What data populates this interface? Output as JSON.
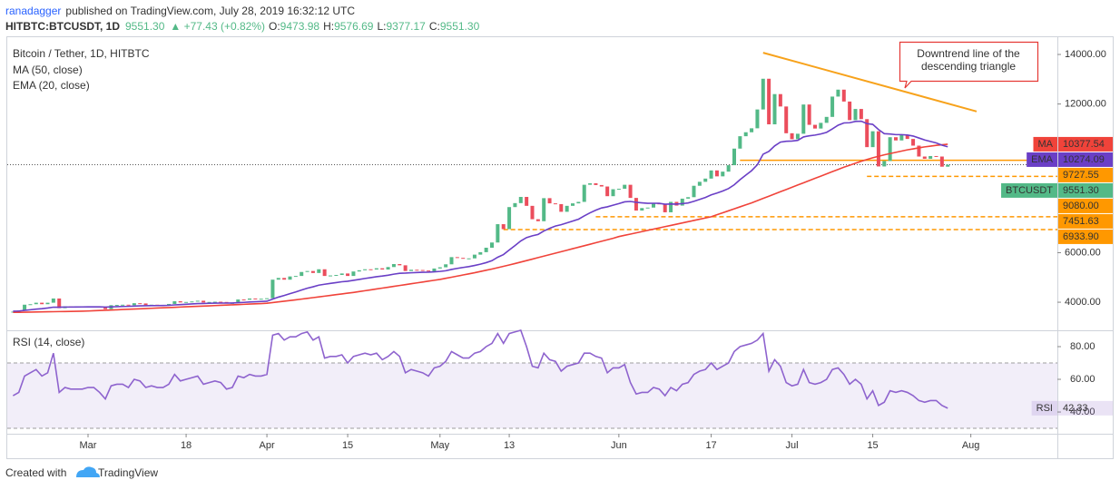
{
  "header": {
    "author": "ranadagger",
    "published": "published on TradingView.com, July 28, 2019 16:32:12 UTC",
    "symbol": "HITBTC:BTCUSDT, 1D",
    "last": "9551.30",
    "change": "▲ +77.43 (+0.82%)",
    "ohlc": [
      {
        "key": "O:",
        "value": "9473.98"
      },
      {
        "key": "H:",
        "value": "9576.69"
      },
      {
        "key": "L:",
        "value": "9377.17"
      },
      {
        "key": "C:",
        "value": "9551.30"
      }
    ]
  },
  "footer": {
    "prefix": "Created with",
    "brand": "TradingView"
  },
  "chart_data": {
    "type": "candlestick",
    "x": [
      "02-16",
      "02-17",
      "02-18",
      "02-19",
      "02-20",
      "02-21",
      "02-22",
      "02-23",
      "02-24",
      "02-25",
      "02-26",
      "02-27",
      "02-28",
      "03-01",
      "03-02",
      "03-03",
      "03-04",
      "03-05",
      "03-06",
      "03-07",
      "03-08",
      "03-09",
      "03-10",
      "03-11",
      "03-12",
      "03-13",
      "03-14",
      "03-15",
      "03-16",
      "03-17",
      "03-18",
      "03-19",
      "03-20",
      "03-21",
      "03-22",
      "03-23",
      "03-24",
      "03-25",
      "03-26",
      "03-27",
      "03-28",
      "03-29",
      "03-30",
      "03-31",
      "04-01",
      "04-02",
      "04-03",
      "04-04",
      "04-05",
      "04-06",
      "04-07",
      "04-08",
      "04-09",
      "04-10",
      "04-11",
      "04-12",
      "04-13",
      "04-14",
      "04-15",
      "04-16",
      "04-17",
      "04-18",
      "04-19",
      "04-20",
      "04-21",
      "04-22",
      "04-23",
      "04-24",
      "04-25",
      "04-26",
      "04-27",
      "04-28",
      "04-29",
      "04-30",
      "05-01",
      "05-02",
      "05-03",
      "05-04",
      "05-05",
      "05-06",
      "05-07",
      "05-08",
      "05-09",
      "05-10",
      "05-11",
      "05-12",
      "05-13",
      "05-14",
      "05-15",
      "05-16",
      "05-17",
      "05-18",
      "05-19",
      "05-20",
      "05-21",
      "05-22",
      "05-23",
      "05-24",
      "05-25",
      "05-26",
      "05-27",
      "05-28",
      "05-29",
      "05-30",
      "05-31",
      "06-01",
      "06-02",
      "06-03",
      "06-04",
      "06-05",
      "06-06",
      "06-07",
      "06-08",
      "06-09",
      "06-10",
      "06-11",
      "06-12",
      "06-13",
      "06-14",
      "06-15",
      "06-16",
      "06-17",
      "06-18",
      "06-19",
      "06-20",
      "06-21",
      "06-22",
      "06-23",
      "06-24",
      "06-25",
      "06-26",
      "06-27",
      "06-28",
      "06-29",
      "06-30",
      "07-01",
      "07-02",
      "07-03",
      "07-04",
      "07-05",
      "07-06",
      "07-07",
      "07-08",
      "07-09",
      "07-10",
      "07-11",
      "07-12",
      "07-13",
      "07-14",
      "07-15",
      "07-16",
      "07-17",
      "07-18",
      "07-19",
      "07-20",
      "07-21",
      "07-22",
      "07-23",
      "07-24",
      "07-25",
      "07-26",
      "07-27",
      "07-28"
    ],
    "xlim": [
      "02-15",
      "08-16"
    ],
    "xticks": [
      {
        "value": "03-01",
        "label": "Mar"
      },
      {
        "value": "03-18",
        "label": "18"
      },
      {
        "value": "04-01",
        "label": "Apr"
      },
      {
        "value": "04-15",
        "label": "15"
      },
      {
        "value": "05-01",
        "label": "May"
      },
      {
        "value": "05-13",
        "label": "13"
      },
      {
        "value": "06-01",
        "label": "Jun"
      },
      {
        "value": "06-17",
        "label": "17"
      },
      {
        "value": "07-01",
        "label": "Jul"
      },
      {
        "value": "07-15",
        "label": "15"
      },
      {
        "value": "08-01",
        "label": "Aug"
      }
    ],
    "ylim": [
      2940,
      14550
    ],
    "yticks": [
      {
        "value": 4000,
        "label": "4000.00"
      },
      {
        "value": 6000,
        "label": "6000.00"
      },
      {
        "value": 12000,
        "label": "12000.00"
      },
      {
        "value": 14000,
        "label": "14000.00"
      }
    ],
    "grid": false,
    "series": [
      {
        "name": "Bitcoin / Tether, 1D, HITBTC",
        "kind": "candle",
        "badge_name": "BTCUSDT",
        "badge_label": "9551.30",
        "up_color": "#53b987",
        "down_color": "#eb4d5c",
        "color": "#53b987",
        "values": [
          3620,
          3670,
          3900,
          3920,
          3980,
          3920,
          3980,
          4150,
          3760,
          3830,
          3810,
          3820,
          3820,
          3830,
          3830,
          3790,
          3720,
          3880,
          3890,
          3900,
          3880,
          3960,
          3950,
          3880,
          3900,
          3890,
          3890,
          3930,
          4040,
          3990,
          4010,
          4030,
          4060,
          3990,
          4010,
          4020,
          4010,
          3950,
          3970,
          4110,
          4100,
          4150,
          4130,
          4140,
          4160,
          4910,
          4980,
          4910,
          5040,
          5060,
          5220,
          5260,
          5180,
          5330,
          5060,
          5080,
          5100,
          5160,
          5060,
          5240,
          5290,
          5330,
          5320,
          5370,
          5320,
          5420,
          5540,
          5490,
          5260,
          5310,
          5300,
          5280,
          5240,
          5360,
          5410,
          5530,
          5820,
          5790,
          5760,
          5770,
          5920,
          6020,
          6200,
          6410,
          7150,
          6950,
          7840,
          8000,
          8250,
          7890,
          7350,
          7270,
          8200,
          7990,
          7960,
          7650,
          7890,
          7990,
          8050,
          8740,
          8800,
          8730,
          8670,
          8280,
          8560,
          8580,
          8740,
          8210,
          7700,
          7800,
          7820,
          8000,
          7950,
          7630,
          8050,
          7900,
          8180,
          8240,
          8700,
          8860,
          8990,
          9320,
          9080,
          9270,
          9530,
          10200,
          10700,
          10860,
          11020,
          11780,
          13020,
          11180,
          12400,
          11900,
          10820,
          10580,
          10800,
          11980,
          11160,
          11010,
          11240,
          11480,
          12300,
          12580,
          12100,
          11350,
          11800,
          11390,
          10260,
          10900,
          9480,
          9700,
          10660,
          10530,
          10760,
          10590,
          10320,
          9880,
          9790,
          9900,
          9880,
          9470,
          9551.3
        ]
      },
      {
        "name": "MA (50, close)",
        "kind": "line",
        "badge_name": "MA",
        "color": "#f0433a",
        "values": [
          3590,
          3594,
          3598,
          3602,
          3606,
          3610,
          3614,
          3618,
          3622,
          3626,
          3630,
          3634,
          3638,
          3645,
          3655,
          3665,
          3675,
          3685,
          3695,
          3705,
          3715,
          3725,
          3735,
          3745,
          3755,
          3765,
          3775,
          3785,
          3795,
          3805,
          3815,
          3825,
          3835,
          3845,
          3855,
          3865,
          3875,
          3885,
          3895,
          3905,
          3915,
          3925,
          3935,
          3945,
          3960,
          3985,
          4012,
          4040,
          4068,
          4096,
          4125,
          4155,
          4185,
          4215,
          4245,
          4275,
          4305,
          4335,
          4365,
          4395,
          4430,
          4465,
          4500,
          4535,
          4570,
          4605,
          4640,
          4675,
          4710,
          4745,
          4780,
          4815,
          4850,
          4885,
          4920,
          4965,
          5010,
          5055,
          5100,
          5145,
          5190,
          5240,
          5290,
          5340,
          5395,
          5450,
          5505,
          5560,
          5620,
          5680,
          5740,
          5800,
          5860,
          5920,
          5980,
          6040,
          6100,
          6160,
          6220,
          6280,
          6340,
          6400,
          6460,
          6520,
          6580,
          6650,
          6700,
          6750,
          6800,
          6850,
          6900,
          6950,
          7000,
          7050,
          7100,
          7150,
          7200,
          7250,
          7300,
          7350,
          7400,
          7450,
          7530,
          7610,
          7690,
          7770,
          7850,
          7930,
          8010,
          8100,
          8190,
          8280,
          8370,
          8460,
          8550,
          8640,
          8730,
          8820,
          8910,
          9000,
          9090,
          9180,
          9270,
          9360,
          9450,
          9530,
          9610,
          9690,
          9760,
          9830,
          9890,
          9950,
          10000,
          10050,
          10100,
          10150,
          10190,
          10230,
          10270,
          10300,
          10330,
          10355,
          10377.54
        ]
      },
      {
        "name": "EMA (20, close)",
        "kind": "line",
        "badge_name": "EMA",
        "color": "#6a3fc6",
        "values": [
          3640,
          3645,
          3670,
          3695,
          3720,
          3740,
          3765,
          3800,
          3800,
          3805,
          3805,
          3808,
          3810,
          3812,
          3814,
          3812,
          3805,
          3812,
          3820,
          3828,
          3833,
          3845,
          3855,
          3857,
          3862,
          3865,
          3868,
          3874,
          3892,
          3904,
          3916,
          3930,
          3945,
          3950,
          3956,
          3962,
          3966,
          3966,
          3968,
          3982,
          3993,
          4008,
          4019,
          4030,
          4041,
          4125,
          4206,
          4273,
          4346,
          4414,
          4491,
          4565,
          4623,
          4689,
          4725,
          4759,
          4792,
          4826,
          4846,
          4883,
          4921,
          4959,
          4993,
          5029,
          5056,
          5090,
          5133,
          5167,
          5175,
          5188,
          5199,
          5208,
          5212,
          5226,
          5243,
          5270,
          5322,
          5366,
          5403,
          5438,
          5484,
          5535,
          5598,
          5675,
          5816,
          5923,
          6107,
          6287,
          6474,
          6609,
          6679,
          6736,
          6875,
          6982,
          7075,
          7130,
          7202,
          7277,
          7350,
          7483,
          7608,
          7714,
          7805,
          7850,
          7917,
          7980,
          8051,
          8067,
          8033,
          8011,
          7993,
          7994,
          7990,
          7956,
          7965,
          7959,
          7980,
          8006,
          8072,
          8149,
          8229,
          8334,
          8405,
          8488,
          8587,
          8740,
          8946,
          9128,
          9309,
          9549,
          9975,
          10089,
          10310,
          10462,
          10497,
          10505,
          10533,
          10671,
          10717,
          10745,
          10791,
          10856,
          10994,
          11144,
          11235,
          11245,
          11298,
          11308,
          11207,
          11178,
          10971,
          10803,
          10789,
          10764,
          10764,
          10748,
          10708,
          10629,
          10550,
          10488,
          10430,
          10339,
          10274.09
        ]
      },
      {
        "name": "RSI (14, close)",
        "kind": "line",
        "panel": "rsi",
        "badge_name": "RSI",
        "color": "#8e63ce",
        "values": [
          50,
          52,
          62,
          64,
          66,
          62,
          64,
          76,
          52,
          55,
          54,
          54,
          54,
          55,
          55,
          52,
          48,
          56,
          57,
          57,
          55,
          60,
          59,
          55,
          56,
          55,
          55,
          57,
          63,
          59,
          60,
          61,
          62,
          57,
          58,
          59,
          58,
          54,
          55,
          62,
          61,
          63,
          62,
          62,
          63,
          87,
          88,
          84,
          86,
          86,
          88,
          89,
          84,
          86,
          73,
          74,
          74,
          75,
          70,
          74,
          75,
          76,
          75,
          76,
          72,
          74,
          77,
          74,
          64,
          66,
          65,
          64,
          62,
          67,
          68,
          71,
          77,
          75,
          73,
          73,
          76,
          77,
          80,
          82,
          88,
          82,
          88,
          89,
          90,
          80,
          68,
          67,
          76,
          72,
          71,
          65,
          68,
          69,
          70,
          76,
          76,
          74,
          73,
          64,
          67,
          67,
          69,
          58,
          51,
          52,
          52,
          55,
          54,
          50,
          55,
          53,
          57,
          58,
          63,
          65,
          66,
          70,
          66,
          68,
          70,
          77,
          80,
          81,
          82,
          84,
          88,
          65,
          72,
          68,
          58,
          56,
          57,
          66,
          58,
          57,
          58,
          60,
          66,
          67,
          63,
          57,
          60,
          57,
          48,
          53,
          44,
          46,
          53,
          52,
          53,
          52,
          50,
          47,
          46,
          47,
          47,
          44,
          42.33
        ]
      }
    ],
    "rsi_panel": {
      "ylim": [
        26.7,
        91.1
      ],
      "yticks": [
        {
          "value": 80,
          "label": "80.00"
        },
        {
          "value": 60,
          "label": "60.00"
        },
        {
          "value": 40,
          "label": "40.00"
        }
      ],
      "band": [
        30,
        70
      ]
    },
    "levels": [
      {
        "value": 9727.55,
        "label": "9727.55",
        "from": "06-22",
        "style": "solid"
      },
      {
        "value": 9080,
        "label": "9080.00",
        "from": "07-14",
        "style": "dashed"
      },
      {
        "value": 7451.63,
        "label": "7451.63",
        "from": "05-28",
        "style": "dashed"
      },
      {
        "value": 6933.9,
        "label": "6933.90",
        "from": "05-12",
        "style": "dashed"
      }
    ],
    "level_color": "#ff9800",
    "trendline": {
      "x": [
        "06-26",
        "08-02"
      ],
      "values": [
        14070,
        11700
      ],
      "color": "#f7a21b"
    },
    "annotation": {
      "lines": [
        "Downtrend line of the",
        "descending triangle"
      ],
      "color": "#e53935"
    }
  }
}
